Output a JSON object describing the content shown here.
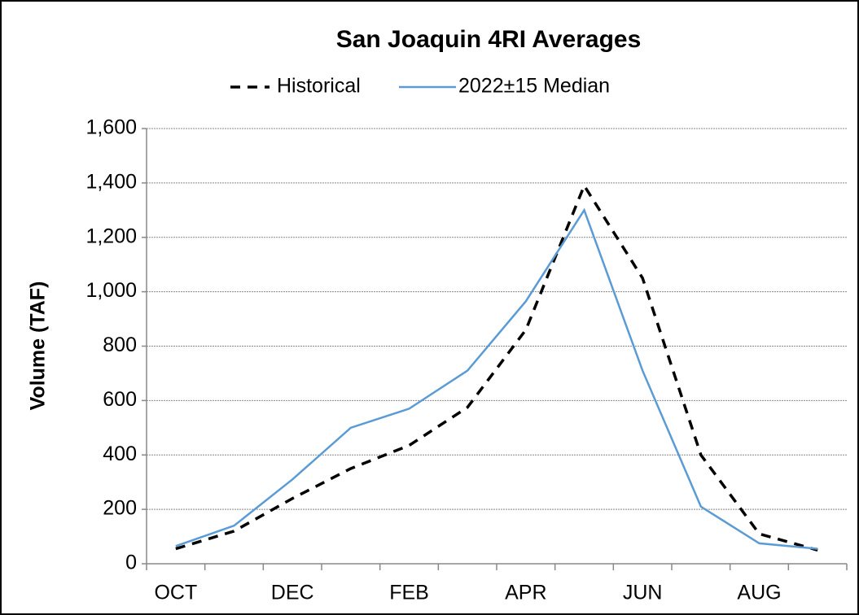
{
  "chart_data": {
    "type": "line",
    "title": "San Joaquin 4RI Averages",
    "ylabel": "Volume (TAF)",
    "categories": [
      "OCT",
      null,
      "DEC",
      null,
      "FEB",
      null,
      "APR",
      null,
      "JUN",
      null,
      "AUG",
      null
    ],
    "series": [
      {
        "name": "Historical",
        "color": "#000000",
        "dash": true,
        "values": [
          55,
          120,
          240,
          350,
          435,
          575,
          860,
          1390,
          1050,
          400,
          110,
          50
        ]
      },
      {
        "name": "2022±15 Median",
        "color": "#5b9bd5",
        "dash": false,
        "values": [
          65,
          140,
          310,
          500,
          570,
          710,
          965,
          1300,
          710,
          210,
          75,
          55
        ]
      }
    ],
    "ylim": [
      0,
      1600
    ],
    "yticks": [
      0,
      200,
      400,
      600,
      800,
      {
        "value": 1000,
        "label": "1,000"
      },
      {
        "value": 1200,
        "label": "1,200"
      },
      {
        "value": 1400,
        "label": "1,400"
      },
      {
        "value": 1600,
        "label": "1,600"
      }
    ],
    "grid": true,
    "legend": "top"
  }
}
